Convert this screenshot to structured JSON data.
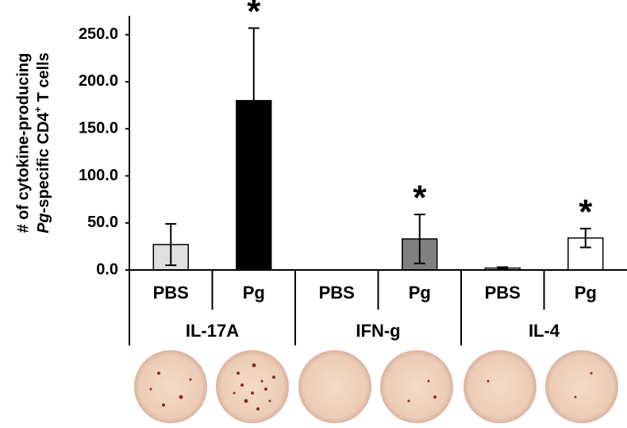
{
  "chart_data": {
    "type": "bar",
    "ylabel": [
      "# of cytokine-producing",
      {
        "italic": "Pg",
        "text": "-specific CD4",
        "sup": "+",
        "end": " T cells"
      }
    ],
    "categories": [
      "PBS",
      "Pg",
      "PBS",
      "Pg",
      "PBS",
      "Pg"
    ],
    "groups": [
      "IL-17A",
      "IFN-g",
      "IL-4"
    ],
    "values": [
      27,
      180,
      0,
      33,
      2,
      34
    ],
    "errors": [
      22,
      77,
      0,
      26,
      1,
      10
    ],
    "colors": [
      "#e0e0e0",
      "#000000",
      "#ffffff",
      "#808080",
      "#ffffff",
      "#ffffff"
    ],
    "value_annotations": [
      null,
      "*",
      null,
      "*",
      null,
      "*"
    ],
    "ylim": [
      0,
      270
    ],
    "yticks": [
      {
        "value": 0,
        "label": "0.0"
      },
      {
        "value": 50,
        "label": "50.0"
      },
      {
        "value": 100,
        "label": "100.0"
      },
      {
        "value": 150,
        "label": "150.0"
      },
      {
        "value": 200,
        "label": "200.0"
      },
      {
        "value": 250,
        "label": "250.0"
      }
    ],
    "grid": false
  }
}
